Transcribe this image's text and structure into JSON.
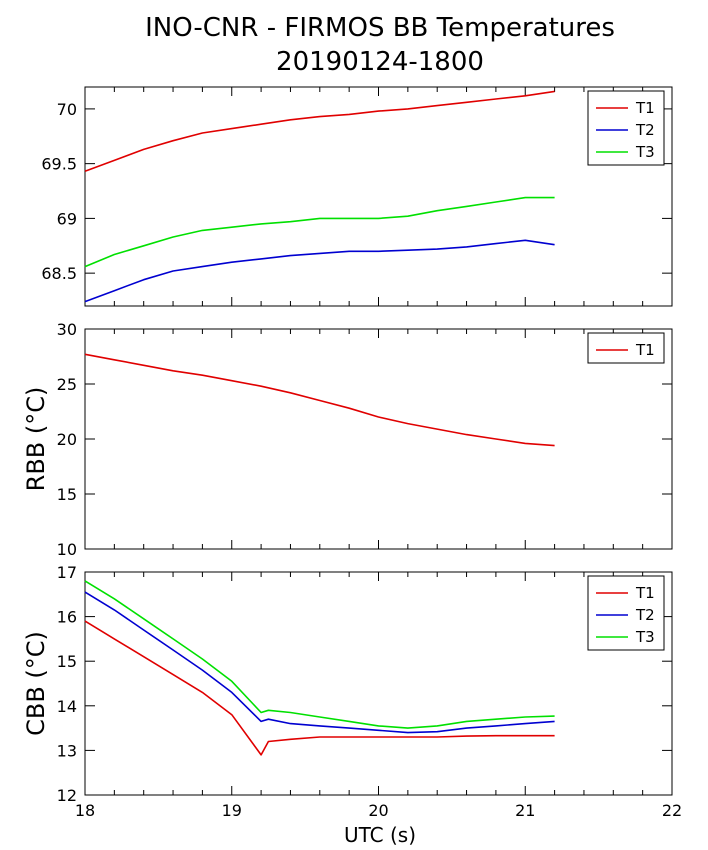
{
  "title_line1": "INO-CNR - FIRMOS BB Temperatures",
  "title_line2": "20190124-1800",
  "xlabel": "UTC (s)",
  "xticks": [
    "18",
    "19",
    "20",
    "21",
    "22"
  ],
  "colors": {
    "T1": "#e00000",
    "T2": "#0000d0",
    "T3": "#00e000"
  },
  "chart_data": [
    {
      "type": "line",
      "ylabel": "",
      "xlim": [
        18,
        22
      ],
      "ylim": [
        68.2,
        70.2
      ],
      "yticks": [
        "68.5",
        "69",
        "69.5",
        "70"
      ],
      "legend": "top-right",
      "series": [
        {
          "name": "T1",
          "x": [
            18.0,
            18.2,
            18.4,
            18.6,
            18.8,
            19.0,
            19.2,
            19.4,
            19.6,
            19.8,
            20.0,
            20.2,
            20.4,
            20.6,
            20.8,
            21.0,
            21.2
          ],
          "y": [
            69.43,
            69.53,
            69.63,
            69.71,
            69.78,
            69.82,
            69.86,
            69.9,
            69.93,
            69.95,
            69.98,
            70.0,
            70.03,
            70.06,
            70.09,
            70.12,
            70.16
          ]
        },
        {
          "name": "T2",
          "x": [
            18.0,
            18.2,
            18.4,
            18.6,
            18.8,
            19.0,
            19.2,
            19.4,
            19.6,
            19.8,
            20.0,
            20.2,
            20.4,
            20.6,
            20.8,
            21.0,
            21.2
          ],
          "y": [
            68.24,
            68.34,
            68.44,
            68.52,
            68.56,
            68.6,
            68.63,
            68.66,
            68.68,
            68.7,
            68.7,
            68.71,
            68.72,
            68.74,
            68.77,
            68.8,
            68.76
          ]
        },
        {
          "name": "T3",
          "x": [
            18.0,
            18.2,
            18.4,
            18.6,
            18.8,
            19.0,
            19.2,
            19.4,
            19.6,
            19.8,
            20.0,
            20.2,
            20.4,
            20.6,
            20.8,
            21.0,
            21.2
          ],
          "y": [
            68.56,
            68.67,
            68.75,
            68.83,
            68.89,
            68.92,
            68.95,
            68.97,
            69.0,
            69.0,
            69.0,
            69.02,
            69.07,
            69.11,
            69.15,
            69.19,
            69.19
          ]
        }
      ]
    },
    {
      "type": "line",
      "ylabel": "RBB (°C)",
      "xlim": [
        18,
        22
      ],
      "ylim": [
        10,
        30
      ],
      "yticks": [
        "10",
        "15",
        "20",
        "25",
        "30"
      ],
      "legend": "top-right",
      "series": [
        {
          "name": "T1",
          "x": [
            18.0,
            18.2,
            18.4,
            18.6,
            18.8,
            19.0,
            19.2,
            19.4,
            19.6,
            19.8,
            20.0,
            20.2,
            20.4,
            20.6,
            20.8,
            21.0,
            21.2
          ],
          "y": [
            27.7,
            27.2,
            26.7,
            26.2,
            25.8,
            25.3,
            24.8,
            24.2,
            23.5,
            22.8,
            22.0,
            21.4,
            20.9,
            20.4,
            20.0,
            19.6,
            19.4
          ]
        }
      ]
    },
    {
      "type": "line",
      "ylabel": "CBB (°C)",
      "xlim": [
        18,
        22
      ],
      "ylim": [
        12,
        17
      ],
      "yticks": [
        "12",
        "13",
        "14",
        "15",
        "16",
        "17"
      ],
      "legend": "top-right",
      "series": [
        {
          "name": "T1",
          "x": [
            18.0,
            18.2,
            18.4,
            18.6,
            18.8,
            19.0,
            19.2,
            19.25,
            19.4,
            19.6,
            19.8,
            20.0,
            20.2,
            20.4,
            20.6,
            20.8,
            21.0,
            21.2
          ],
          "y": [
            15.9,
            15.5,
            15.1,
            14.7,
            14.3,
            13.8,
            12.9,
            13.2,
            13.25,
            13.3,
            13.3,
            13.3,
            13.3,
            13.3,
            13.32,
            13.33,
            13.33,
            13.33
          ]
        },
        {
          "name": "T2",
          "x": [
            18.0,
            18.2,
            18.4,
            18.6,
            18.8,
            19.0,
            19.2,
            19.25,
            19.4,
            19.6,
            19.8,
            20.0,
            20.2,
            20.4,
            20.6,
            20.8,
            21.0,
            21.2
          ],
          "y": [
            16.55,
            16.15,
            15.7,
            15.25,
            14.8,
            14.3,
            13.65,
            13.7,
            13.6,
            13.55,
            13.5,
            13.45,
            13.4,
            13.42,
            13.5,
            13.55,
            13.6,
            13.65
          ]
        },
        {
          "name": "T3",
          "x": [
            18.0,
            18.2,
            18.4,
            18.6,
            18.8,
            19.0,
            19.2,
            19.25,
            19.4,
            19.6,
            19.8,
            20.0,
            20.2,
            20.4,
            20.6,
            20.8,
            21.0,
            21.2
          ],
          "y": [
            16.8,
            16.4,
            15.95,
            15.5,
            15.05,
            14.55,
            13.85,
            13.9,
            13.85,
            13.75,
            13.65,
            13.55,
            13.5,
            13.55,
            13.65,
            13.7,
            13.75,
            13.77
          ]
        }
      ]
    }
  ]
}
